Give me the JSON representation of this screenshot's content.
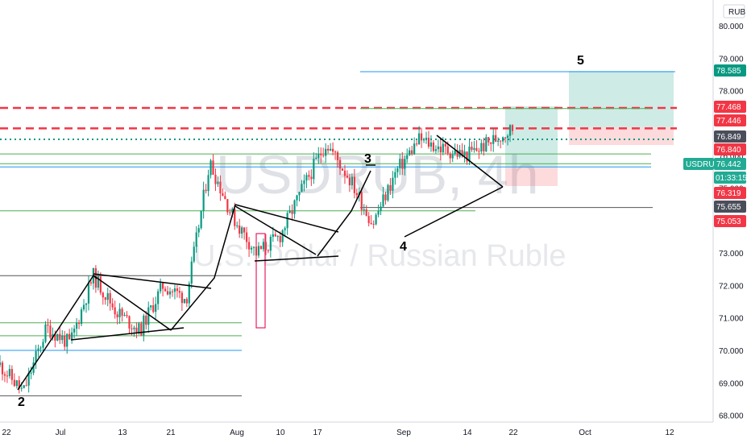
{
  "watermark": {
    "symbol": "USDRUB, 4h",
    "name": "U.S. Dollar / Russian Ruble"
  },
  "currency_label": "RUB",
  "chart_data": {
    "type": "candlestick",
    "symbol": "USDRUB",
    "timeframe": "4h",
    "ylim": [
      67.5,
      80.4
    ],
    "y_ticks": [
      "80.000",
      "79.000",
      "78.000",
      "77.000",
      "76.000",
      "75.000",
      "74.000",
      "73.000",
      "72.000",
      "71.000",
      "70.000",
      "69.000",
      "68.000"
    ],
    "x_ticks": [
      "22",
      "Jul",
      "13",
      "21",
      "Aug",
      "10",
      "17",
      "Sep",
      "14",
      "22",
      "Oct",
      "12"
    ],
    "price_path": [
      69.55,
      68.7,
      70.7,
      70.2,
      72.3,
      71.2,
      70.6,
      72.0,
      71.6,
      75.8,
      74.1,
      73.0,
      73.5,
      75.0,
      76.4,
      75.3,
      73.9,
      75.5,
      76.5,
      76.2,
      76.0,
      76.4,
      76.84
    ],
    "current_price": "76.442",
    "countdown": "01:33:15",
    "price_tags": [
      {
        "label": "78.585",
        "price": 78.585,
        "color": "#089981"
      },
      {
        "label": "77.468",
        "price": 77.468,
        "color": "#f23645"
      },
      {
        "label": "77.446",
        "price": 77.446,
        "color": "#f23645"
      },
      {
        "label": "76.849",
        "price": 76.849,
        "color": "#4a4e5a"
      },
      {
        "label": "76.840",
        "price": 76.84,
        "color": "#f23645"
      },
      {
        "label": "76.319",
        "price": 76.319,
        "color": "#f23645"
      },
      {
        "label": "75.655",
        "price": 75.655,
        "color": "#4a4e5a"
      },
      {
        "label": "75.053",
        "price": 75.053,
        "color": "#f23645"
      }
    ],
    "horizontal_levels": [
      {
        "price": 77.468,
        "color": "#f23645",
        "style": "dashed"
      },
      {
        "price": 76.84,
        "color": "#f23645",
        "style": "dashed"
      },
      {
        "price": 76.5,
        "color": "#089981",
        "style": "dotted"
      },
      {
        "price": 78.585,
        "color": "#2196f3",
        "style": "solid"
      },
      {
        "price": 75.65,
        "color": "#2196f3",
        "style": "solid"
      },
      {
        "price": 70.0,
        "color": "#2196f3",
        "style": "solid"
      },
      {
        "price": 76.05,
        "color": "#4caf50",
        "style": "solid"
      },
      {
        "price": 75.75,
        "color": "#4caf50",
        "style": "solid"
      },
      {
        "price": 74.3,
        "color": "#4caf50",
        "style": "solid"
      },
      {
        "price": 70.85,
        "color": "#4caf50",
        "style": "solid"
      },
      {
        "price": 70.45,
        "color": "#4caf50",
        "style": "solid"
      },
      {
        "price": 77.45,
        "color": "#4caf50",
        "style": "solid"
      },
      {
        "price": 72.3,
        "color": "#555555",
        "style": "solid"
      },
      {
        "price": 74.4,
        "color": "#555555",
        "style": "solid"
      },
      {
        "price": 68.6,
        "color": "#555555",
        "style": "solid"
      }
    ],
    "wave_labels": [
      "2",
      "3",
      "4",
      "5"
    ]
  }
}
